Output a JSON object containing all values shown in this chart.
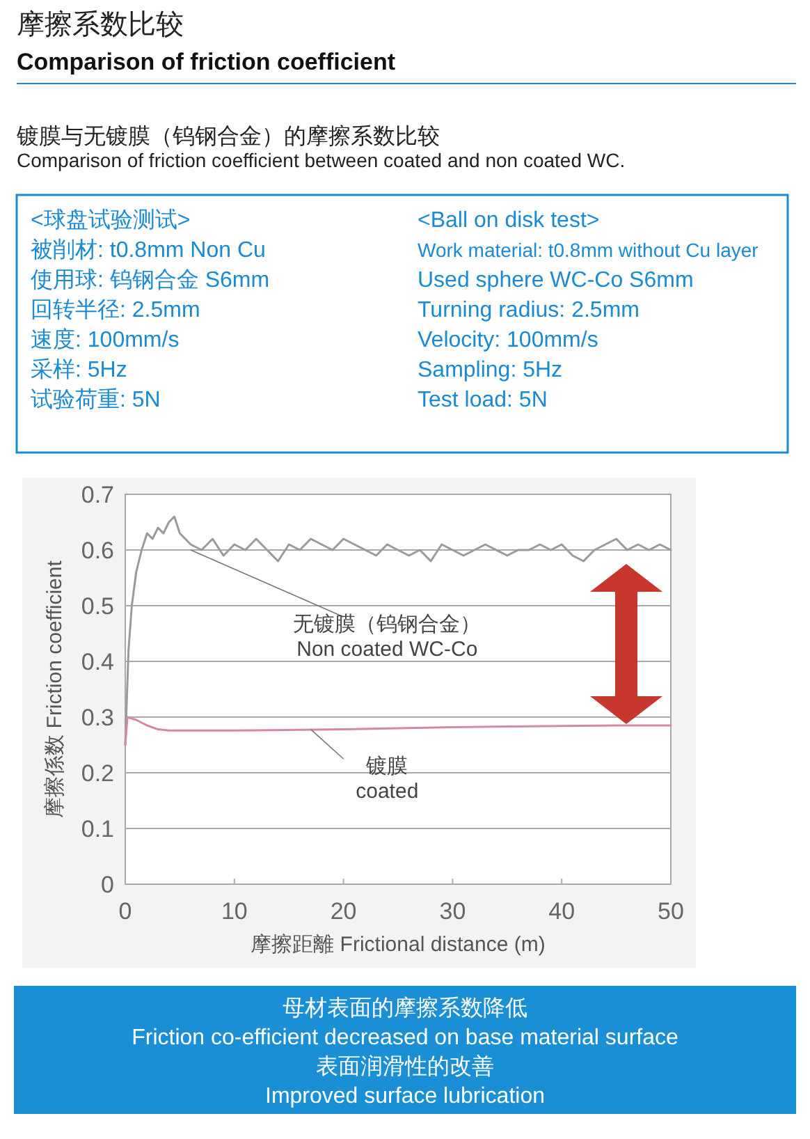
{
  "chart_data": {
    "type": "line",
    "title": "摩擦系数比较",
    "subtitle": "Comparison of friction coefficient",
    "xlabel": "摩擦距離  Frictional distance (m)",
    "ylabel": "摩擦係数  Friction coefficient",
    "xlim": [
      0,
      50
    ],
    "xticks": [
      0,
      10,
      20,
      30,
      40,
      50
    ],
    "ylim": [
      0,
      0.7
    ],
    "yticks": [
      0,
      0.1,
      0.2,
      0.3,
      0.4,
      0.5,
      0.6,
      0.7
    ],
    "grid": "y",
    "marker": "none",
    "line_style": "solid",
    "series": [
      {
        "name": "无镀膜（钨钢合金）\nNon coated WC-Co",
        "color": "#9a9a9a",
        "x": [
          0,
          0.3,
          0.6,
          1,
          1.5,
          2,
          2.5,
          3,
          3.5,
          4,
          4.5,
          5,
          5.5,
          6,
          7,
          8,
          9,
          10,
          11,
          12,
          13,
          14,
          15,
          16,
          17,
          18,
          19,
          20,
          21,
          22,
          23,
          24,
          25,
          26,
          27,
          28,
          29,
          30,
          31,
          32,
          33,
          34,
          35,
          36,
          37,
          38,
          39,
          40,
          41,
          42,
          43,
          44,
          45,
          46,
          47,
          48,
          49,
          50
        ],
        "values": [
          0.25,
          0.42,
          0.5,
          0.56,
          0.6,
          0.63,
          0.62,
          0.64,
          0.63,
          0.65,
          0.66,
          0.63,
          0.62,
          0.61,
          0.6,
          0.62,
          0.59,
          0.61,
          0.6,
          0.62,
          0.6,
          0.58,
          0.61,
          0.6,
          0.62,
          0.61,
          0.6,
          0.62,
          0.61,
          0.6,
          0.59,
          0.61,
          0.6,
          0.59,
          0.6,
          0.58,
          0.61,
          0.6,
          0.59,
          0.6,
          0.61,
          0.6,
          0.59,
          0.6,
          0.6,
          0.61,
          0.6,
          0.61,
          0.59,
          0.58,
          0.6,
          0.61,
          0.62,
          0.6,
          0.61,
          0.6,
          0.61,
          0.6
        ]
      },
      {
        "name": "镀膜\ncoated",
        "color": "#d48a9c",
        "x": [
          0,
          0.2,
          1,
          2,
          3,
          4,
          6,
          8,
          10,
          15,
          20,
          25,
          30,
          35,
          40,
          45,
          50
        ],
        "values": [
          0.25,
          0.3,
          0.295,
          0.285,
          0.278,
          0.276,
          0.276,
          0.276,
          0.276,
          0.277,
          0.278,
          0.28,
          0.282,
          0.283,
          0.284,
          0.285,
          0.285
        ]
      }
    ],
    "annotations": [
      "镀膜与无镀膜（钨钢合金）的摩擦系数比较",
      "Comparison of friction coefficient between coated and non coated WC.",
      "<球盘试验测试>",
      "被削材: t0.8mm Non Cu",
      "使用球: 钨钢合金 S6mm",
      "回转半径: 2.5mm",
      "速度: 100mm/s",
      "采样: 5Hz",
      "试验荷重: 5N",
      "<Ball on disk test>",
      "Work material: t0.8mm without Cu layer",
      "Used sphere WC-Co S6mm",
      "Turning radius: 2.5mm",
      "Velocity: 100mm/s",
      "Sampling: 5Hz",
      "Test load: 5N",
      "母材表面的摩擦系数降低",
      "Friction co-efficient decreased on base material surface",
      "表面润滑性的改善",
      "Improved surface lubrication"
    ]
  }
}
